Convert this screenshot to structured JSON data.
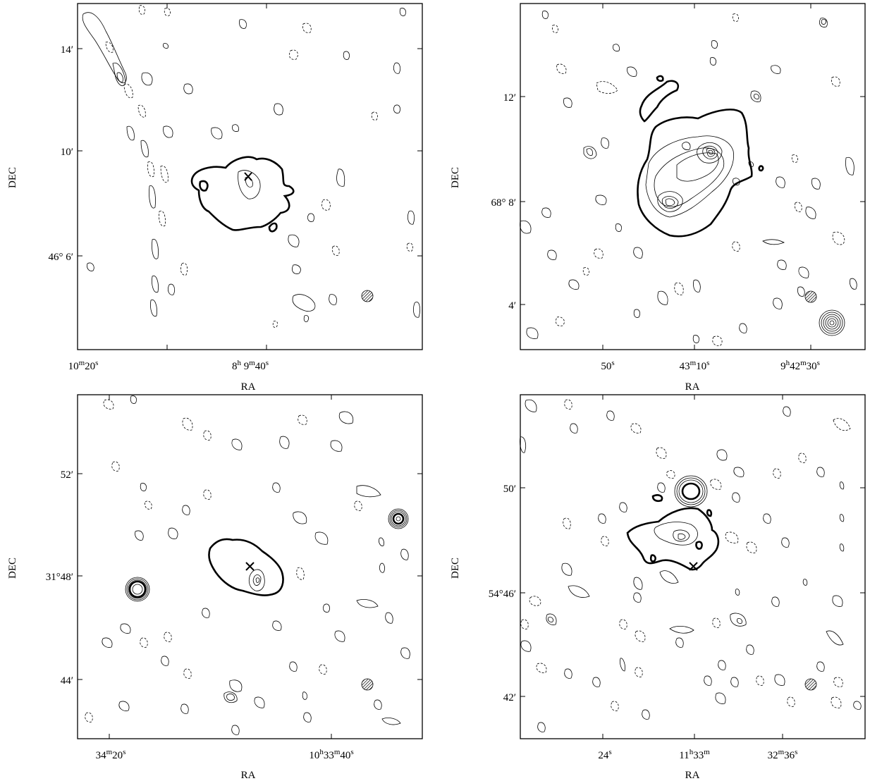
{
  "panels": [
    {
      "id": "top-left",
      "xlabel": "RA",
      "ylabel": "DEC",
      "ra_ticks": [
        "10m20s",
        "8h 9m40s"
      ],
      "ra_ticks_display": [
        {
          "main": "10",
          "sup1": "m",
          "mid": "20",
          "sup2": "s"
        },
        {
          "main": "8",
          "sup1": "h",
          "mid": " 9",
          "sup2": "m",
          "tail": "40",
          "sup3": "s"
        }
      ],
      "dec_ticks": [
        "14′",
        "10′",
        "46° 6′"
      ]
    },
    {
      "id": "top-right",
      "xlabel": "RA",
      "ylabel": "DEC",
      "ra_ticks": [
        "50s",
        "43m10s",
        "9h42m30s"
      ],
      "dec_ticks": [
        "12′",
        "68° 8′",
        "4′"
      ]
    },
    {
      "id": "bottom-left",
      "xlabel": "RA",
      "ylabel": "DEC",
      "ra_ticks": [
        "34m20s",
        "10h33m40s"
      ],
      "dec_ticks": [
        "52′",
        "31°48′",
        "44′"
      ]
    },
    {
      "id": "bottom-right",
      "xlabel": "RA",
      "ylabel": "DEC",
      "ra_ticks": [
        "24s",
        "11h33m",
        "32m36s"
      ],
      "dec_ticks": [
        "50′",
        "54°46′",
        "42′"
      ]
    }
  ]
}
